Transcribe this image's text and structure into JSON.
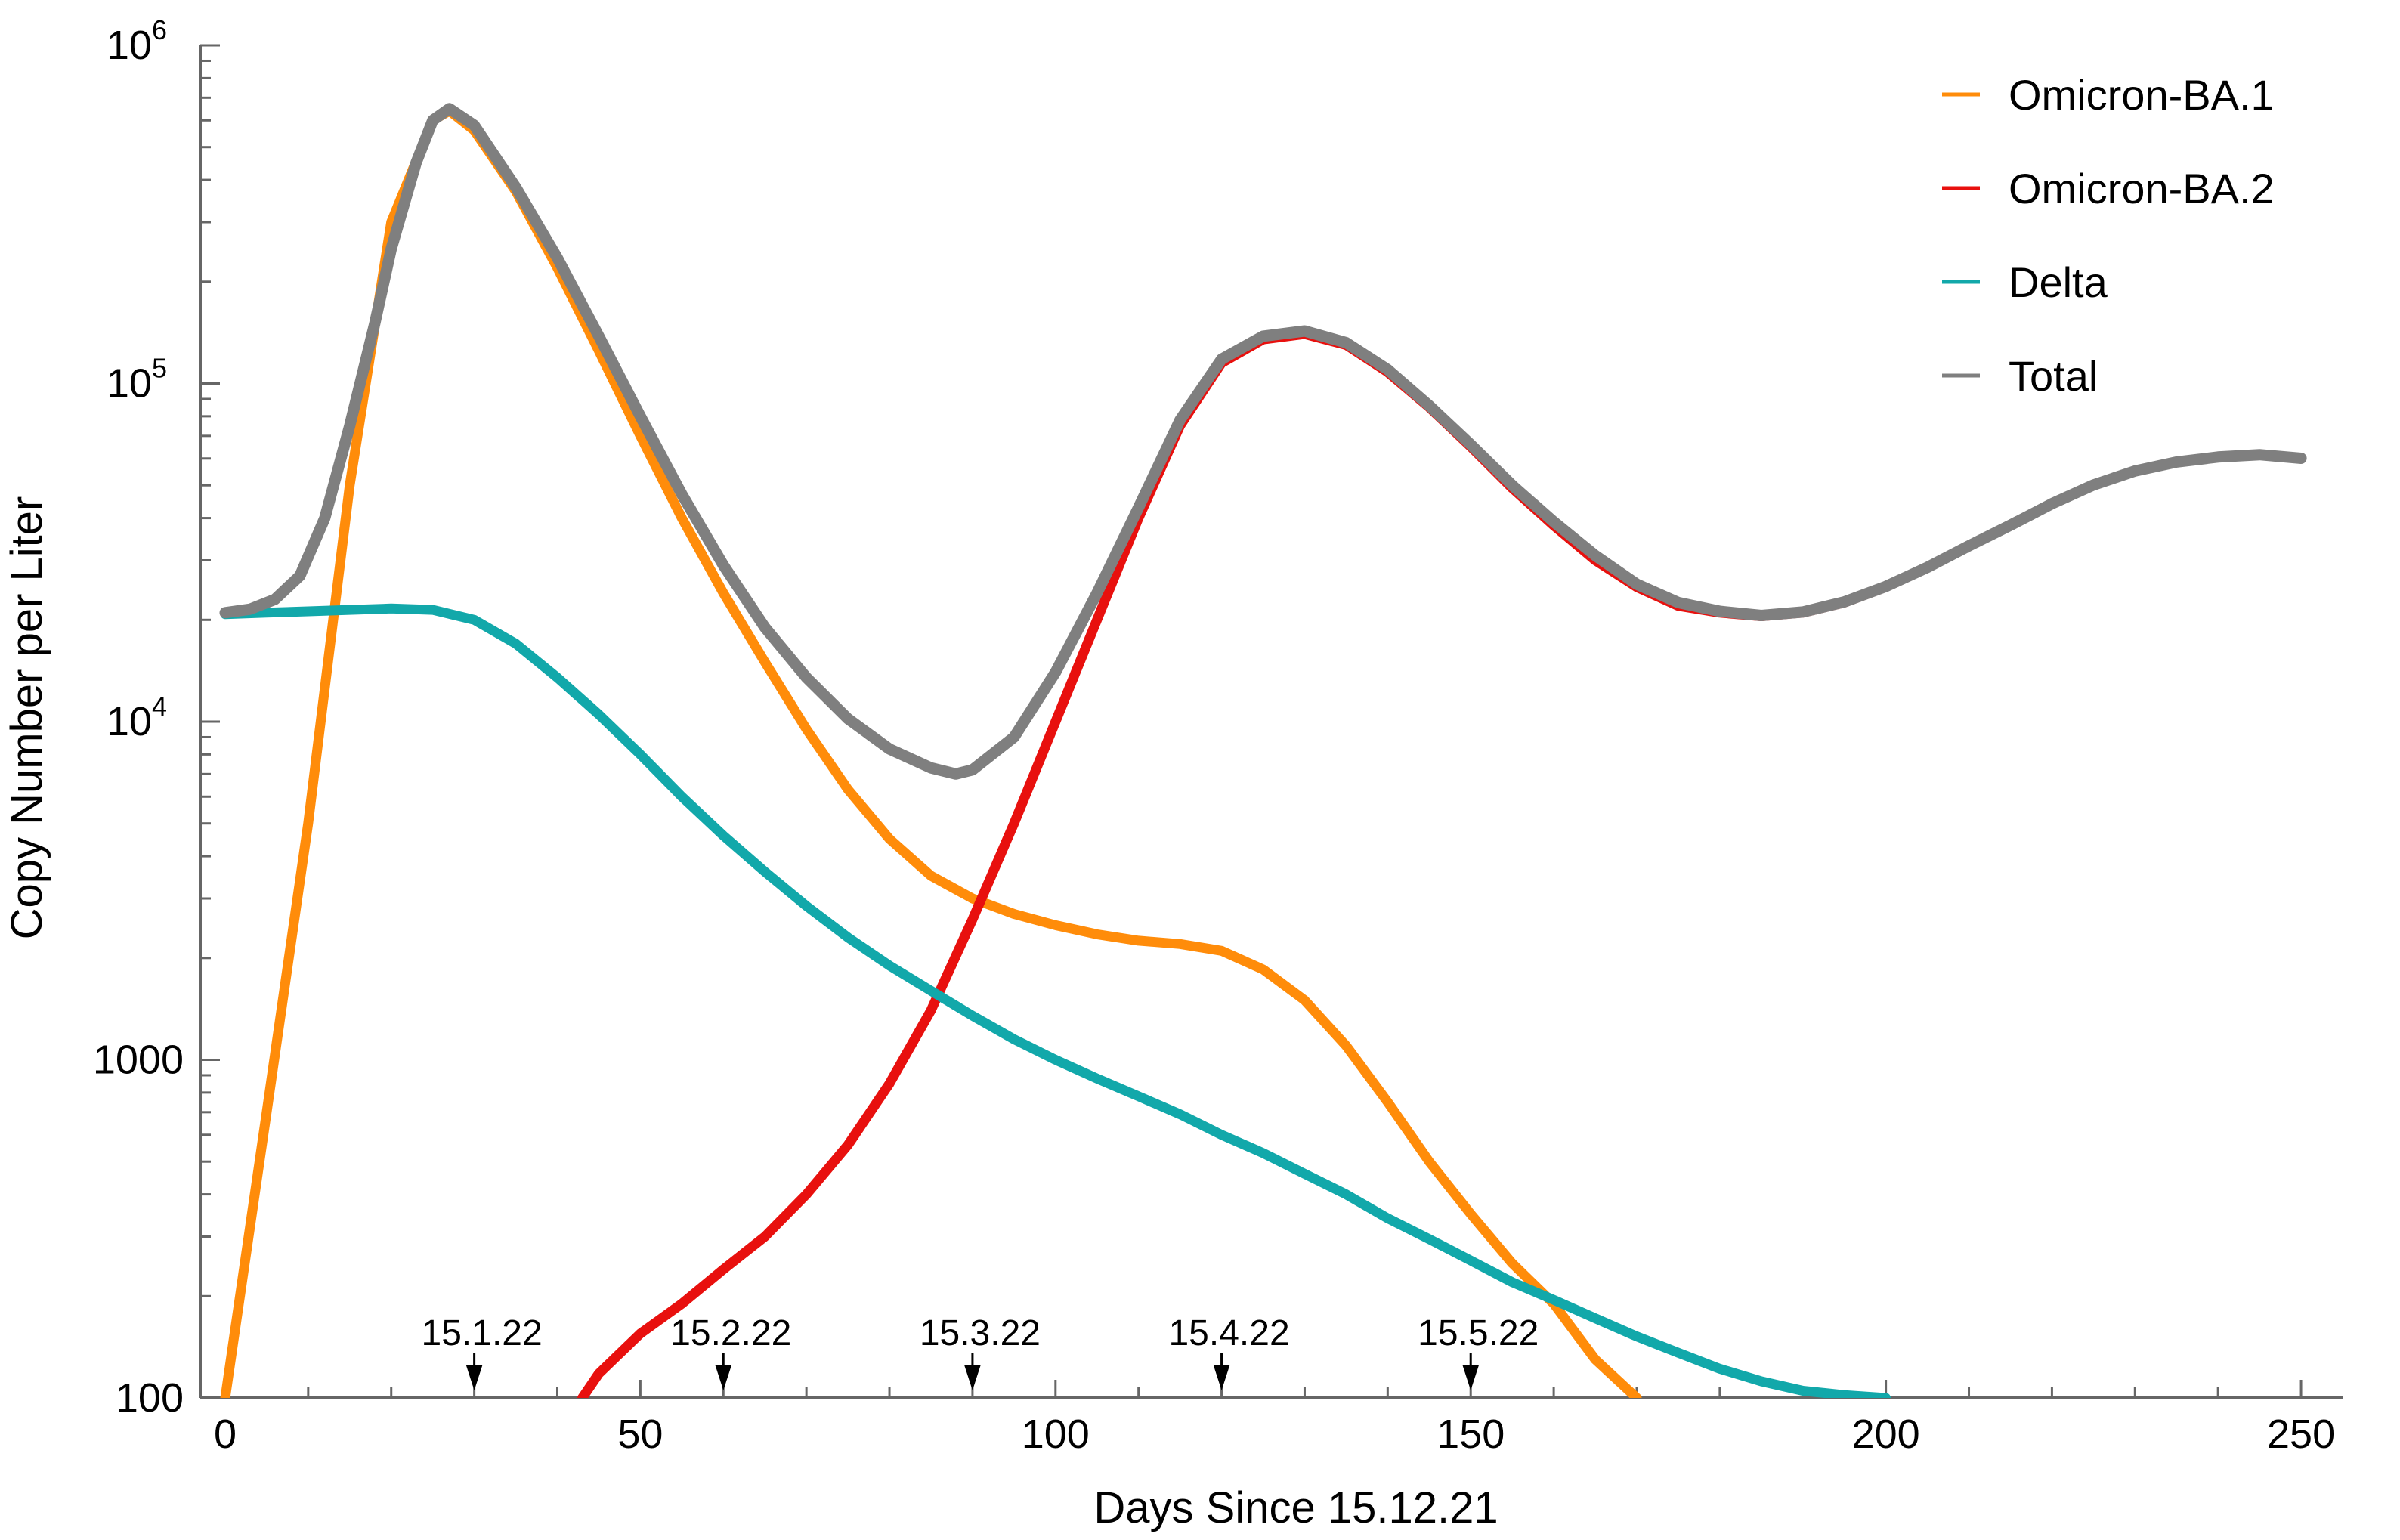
{
  "chart_data": {
    "type": "line",
    "title": "",
    "xlabel": "Days Since 15.12.21",
    "ylabel": "Copy Number per Liter",
    "xlim": [
      -3,
      255
    ],
    "ylim": [
      100,
      1000000
    ],
    "yscale": "log",
    "x_ticks": [
      {
        "value": 0,
        "label": "0"
      },
      {
        "value": 50,
        "label": "50"
      },
      {
        "value": 100,
        "label": "100"
      },
      {
        "value": 150,
        "label": "150"
      },
      {
        "value": 200,
        "label": "200"
      },
      {
        "value": 250,
        "label": "250"
      }
    ],
    "y_ticks": [
      {
        "value": 100,
        "label": "100",
        "sup": ""
      },
      {
        "value": 1000,
        "label": "1000",
        "sup": ""
      },
      {
        "value": 10000,
        "label": "10",
        "sup": "4"
      },
      {
        "value": 100000,
        "label": "10",
        "sup": "5"
      },
      {
        "value": 1000000,
        "label": "10",
        "sup": "6"
      }
    ],
    "date_markers": [
      {
        "x": 30,
        "label": "15.1.22"
      },
      {
        "x": 60,
        "label": "15.2.22"
      },
      {
        "x": 90,
        "label": "15.3.22"
      },
      {
        "x": 120,
        "label": "15.4.22"
      },
      {
        "x": 150,
        "label": "15.5.22"
      }
    ],
    "legend_position": "top-right",
    "series": [
      {
        "name": "Omicron-BA.1",
        "color": "#ff8c0a",
        "width": 13,
        "points": [
          [
            0,
            100
          ],
          [
            5,
            700
          ],
          [
            10,
            5000
          ],
          [
            15,
            50000
          ],
          [
            20,
            300000
          ],
          [
            25,
            600000
          ],
          [
            27,
            640000
          ],
          [
            30,
            560000
          ],
          [
            35,
            370000
          ],
          [
            40,
            220000
          ],
          [
            45,
            125000
          ],
          [
            50,
            70000
          ],
          [
            55,
            40000
          ],
          [
            60,
            24000
          ],
          [
            65,
            15000
          ],
          [
            70,
            9500
          ],
          [
            75,
            6300
          ],
          [
            80,
            4500
          ],
          [
            85,
            3500
          ],
          [
            90,
            3000
          ],
          [
            95,
            2700
          ],
          [
            100,
            2500
          ],
          [
            105,
            2350
          ],
          [
            110,
            2250
          ],
          [
            115,
            2200
          ],
          [
            120,
            2100
          ],
          [
            125,
            1850
          ],
          [
            130,
            1500
          ],
          [
            135,
            1100
          ],
          [
            140,
            750
          ],
          [
            145,
            500
          ],
          [
            150,
            350
          ],
          [
            155,
            250
          ],
          [
            160,
            190
          ],
          [
            165,
            130
          ],
          [
            170,
            100
          ]
        ]
      },
      {
        "name": "Omicron-BA.2",
        "color": "#e8100e",
        "width": 13,
        "points": [
          [
            43,
            100
          ],
          [
            45,
            118
          ],
          [
            50,
            155
          ],
          [
            55,
            190
          ],
          [
            60,
            240
          ],
          [
            65,
            300
          ],
          [
            70,
            400
          ],
          [
            75,
            560
          ],
          [
            80,
            850
          ],
          [
            85,
            1400
          ],
          [
            90,
            2600
          ],
          [
            95,
            5000
          ],
          [
            100,
            10000
          ],
          [
            105,
            20000
          ],
          [
            110,
            40000
          ],
          [
            115,
            75000
          ],
          [
            120,
            115000
          ],
          [
            125,
            135000
          ],
          [
            130,
            140000
          ],
          [
            135,
            130000
          ],
          [
            140,
            108000
          ],
          [
            145,
            85000
          ],
          [
            150,
            65000
          ],
          [
            155,
            49000
          ],
          [
            160,
            38000
          ],
          [
            165,
            30000
          ],
          [
            170,
            25000
          ],
          [
            175,
            22000
          ],
          [
            180,
            21000
          ],
          [
            185,
            20500
          ],
          [
            190,
            21000
          ],
          [
            195,
            22500
          ],
          [
            200,
            25000
          ],
          [
            205,
            28500
          ],
          [
            210,
            33000
          ],
          [
            215,
            38000
          ],
          [
            220,
            44000
          ],
          [
            225,
            50000
          ],
          [
            230,
            55000
          ],
          [
            235,
            58500
          ],
          [
            240,
            60500
          ],
          [
            245,
            61500
          ],
          [
            250,
            60000
          ]
        ]
      },
      {
        "name": "Delta",
        "color": "#12a8aa",
        "width": 13,
        "points": [
          [
            0,
            20800
          ],
          [
            5,
            21000
          ],
          [
            10,
            21200
          ],
          [
            15,
            21400
          ],
          [
            20,
            21600
          ],
          [
            25,
            21400
          ],
          [
            30,
            20000
          ],
          [
            35,
            17000
          ],
          [
            40,
            13500
          ],
          [
            45,
            10500
          ],
          [
            50,
            8000
          ],
          [
            55,
            6000
          ],
          [
            60,
            4600
          ],
          [
            65,
            3600
          ],
          [
            70,
            2850
          ],
          [
            75,
            2300
          ],
          [
            80,
            1900
          ],
          [
            85,
            1600
          ],
          [
            90,
            1350
          ],
          [
            95,
            1150
          ],
          [
            100,
            1000
          ],
          [
            105,
            880
          ],
          [
            110,
            780
          ],
          [
            115,
            690
          ],
          [
            120,
            600
          ],
          [
            125,
            530
          ],
          [
            130,
            460
          ],
          [
            135,
            400
          ],
          [
            140,
            340
          ],
          [
            145,
            295
          ],
          [
            150,
            255
          ],
          [
            155,
            220
          ],
          [
            160,
            195
          ],
          [
            165,
            172
          ],
          [
            170,
            152
          ],
          [
            175,
            136
          ],
          [
            180,
            122
          ],
          [
            185,
            112
          ],
          [
            190,
            105
          ],
          [
            195,
            102
          ],
          [
            200,
            100
          ]
        ]
      },
      {
        "name": "Total",
        "color": "#7f7f7f",
        "width": 15,
        "points": [
          [
            0,
            21000
          ],
          [
            3,
            21500
          ],
          [
            6,
            23000
          ],
          [
            9,
            27000
          ],
          [
            12,
            40000
          ],
          [
            15,
            75000
          ],
          [
            18,
            150000
          ],
          [
            20,
            250000
          ],
          [
            23,
            450000
          ],
          [
            25,
            600000
          ],
          [
            27,
            650000
          ],
          [
            30,
            580000
          ],
          [
            35,
            380000
          ],
          [
            40,
            235000
          ],
          [
            45,
            138000
          ],
          [
            50,
            80000
          ],
          [
            55,
            47000
          ],
          [
            60,
            29000
          ],
          [
            65,
            19000
          ],
          [
            70,
            13500
          ],
          [
            75,
            10200
          ],
          [
            80,
            8300
          ],
          [
            85,
            7300
          ],
          [
            88,
            7000
          ],
          [
            90,
            7200
          ],
          [
            95,
            9000
          ],
          [
            100,
            14000
          ],
          [
            105,
            24000
          ],
          [
            110,
            43000
          ],
          [
            115,
            78000
          ],
          [
            120,
            118000
          ],
          [
            125,
            138000
          ],
          [
            130,
            143000
          ],
          [
            135,
            132000
          ],
          [
            140,
            110000
          ],
          [
            145,
            86000
          ],
          [
            150,
            66000
          ],
          [
            155,
            50000
          ],
          [
            160,
            39000
          ],
          [
            165,
            31000
          ],
          [
            170,
            25500
          ],
          [
            175,
            22500
          ],
          [
            180,
            21200
          ],
          [
            185,
            20600
          ],
          [
            190,
            21100
          ],
          [
            195,
            22600
          ],
          [
            200,
            25100
          ],
          [
            205,
            28600
          ],
          [
            210,
            33100
          ],
          [
            215,
            38100
          ],
          [
            220,
            44100
          ],
          [
            225,
            50100
          ],
          [
            230,
            55100
          ],
          [
            235,
            58600
          ],
          [
            240,
            60600
          ],
          [
            245,
            61600
          ],
          [
            250,
            60100
          ]
        ]
      }
    ]
  }
}
